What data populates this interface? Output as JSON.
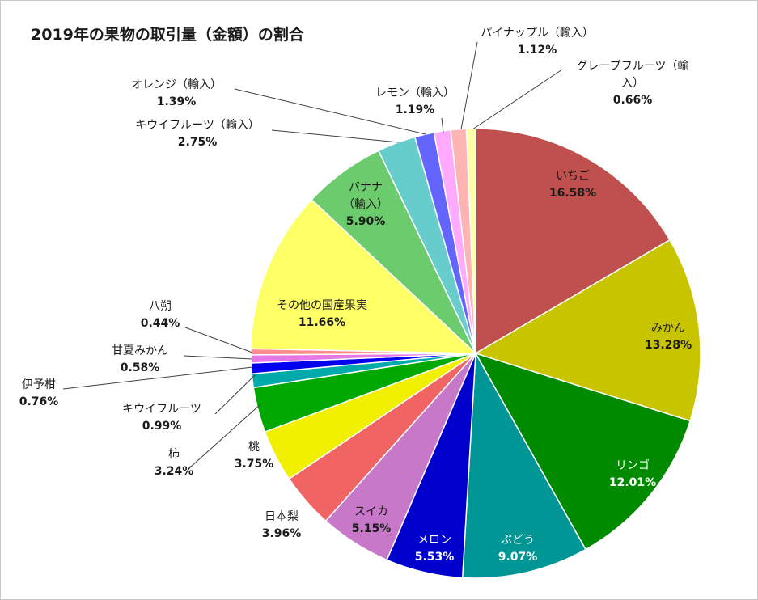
{
  "chart_data": {
    "type": "pie",
    "title": "2019年の果物の取引量（金額）の割合",
    "slices": [
      {
        "label": "いちご",
        "value": 16.58,
        "display": "16.58%",
        "color": "#C0504D"
      },
      {
        "label": "みかん",
        "value": 13.28,
        "display": "13.28%",
        "color": "#C8C400"
      },
      {
        "label": "リンゴ",
        "value": 12.01,
        "display": "12.01%",
        "color": "#008A00"
      },
      {
        "label": "ぶどう",
        "value": 9.07,
        "display": "9.07%",
        "color": "#009696"
      },
      {
        "label": "メロン",
        "value": 5.53,
        "display": "5.53%",
        "color": "#0000CC"
      },
      {
        "label": "スイカ",
        "value": 5.15,
        "display": "5.15%",
        "color": "#C878C8"
      },
      {
        "label": "日本梨",
        "value": 3.96,
        "display": "3.96%",
        "color": "#F06464"
      },
      {
        "label": "桃",
        "value": 3.75,
        "display": "3.75%",
        "color": "#F0F000"
      },
      {
        "label": "柿",
        "value": 3.24,
        "display": "3.24%",
        "color": "#00A800"
      },
      {
        "label": "キウイフルーツ",
        "value": 0.99,
        "display": "0.99%",
        "color": "#00AAAA"
      },
      {
        "label": "伊予柑",
        "value": 0.76,
        "display": "0.76%",
        "color": "#0000EE"
      },
      {
        "label": "甘夏みかん",
        "value": 0.58,
        "display": "0.58%",
        "color": "#E678E6"
      },
      {
        "label": "八朔",
        "value": 0.44,
        "display": "0.44%",
        "color": "#FF8C8C"
      },
      {
        "label": "その他の国産果実",
        "value": 11.66,
        "display": "11.66%",
        "color": "#FFFF66"
      },
      {
        "label": "バナナ（輸入）",
        "value": 5.9,
        "display": "5.90%",
        "color": "#6CCB6C"
      },
      {
        "label": "キウイフルーツ（輸入）",
        "value": 2.75,
        "display": "2.75%",
        "color": "#66CCCC"
      },
      {
        "label": "オレンジ（輸入）",
        "value": 1.39,
        "display": "1.39%",
        "color": "#6464FF"
      },
      {
        "label": "レモン（輸入）",
        "value": 1.19,
        "display": "1.19%",
        "color": "#FFAAFF"
      },
      {
        "label": "パイナップル（輸入）",
        "value": 1.12,
        "display": "1.12%",
        "color": "#FFB4B4"
      },
      {
        "label": "グレープフルーツ（輸入）",
        "value": 0.66,
        "display": "0.66%",
        "color": "#FFFFAA"
      }
    ]
  }
}
